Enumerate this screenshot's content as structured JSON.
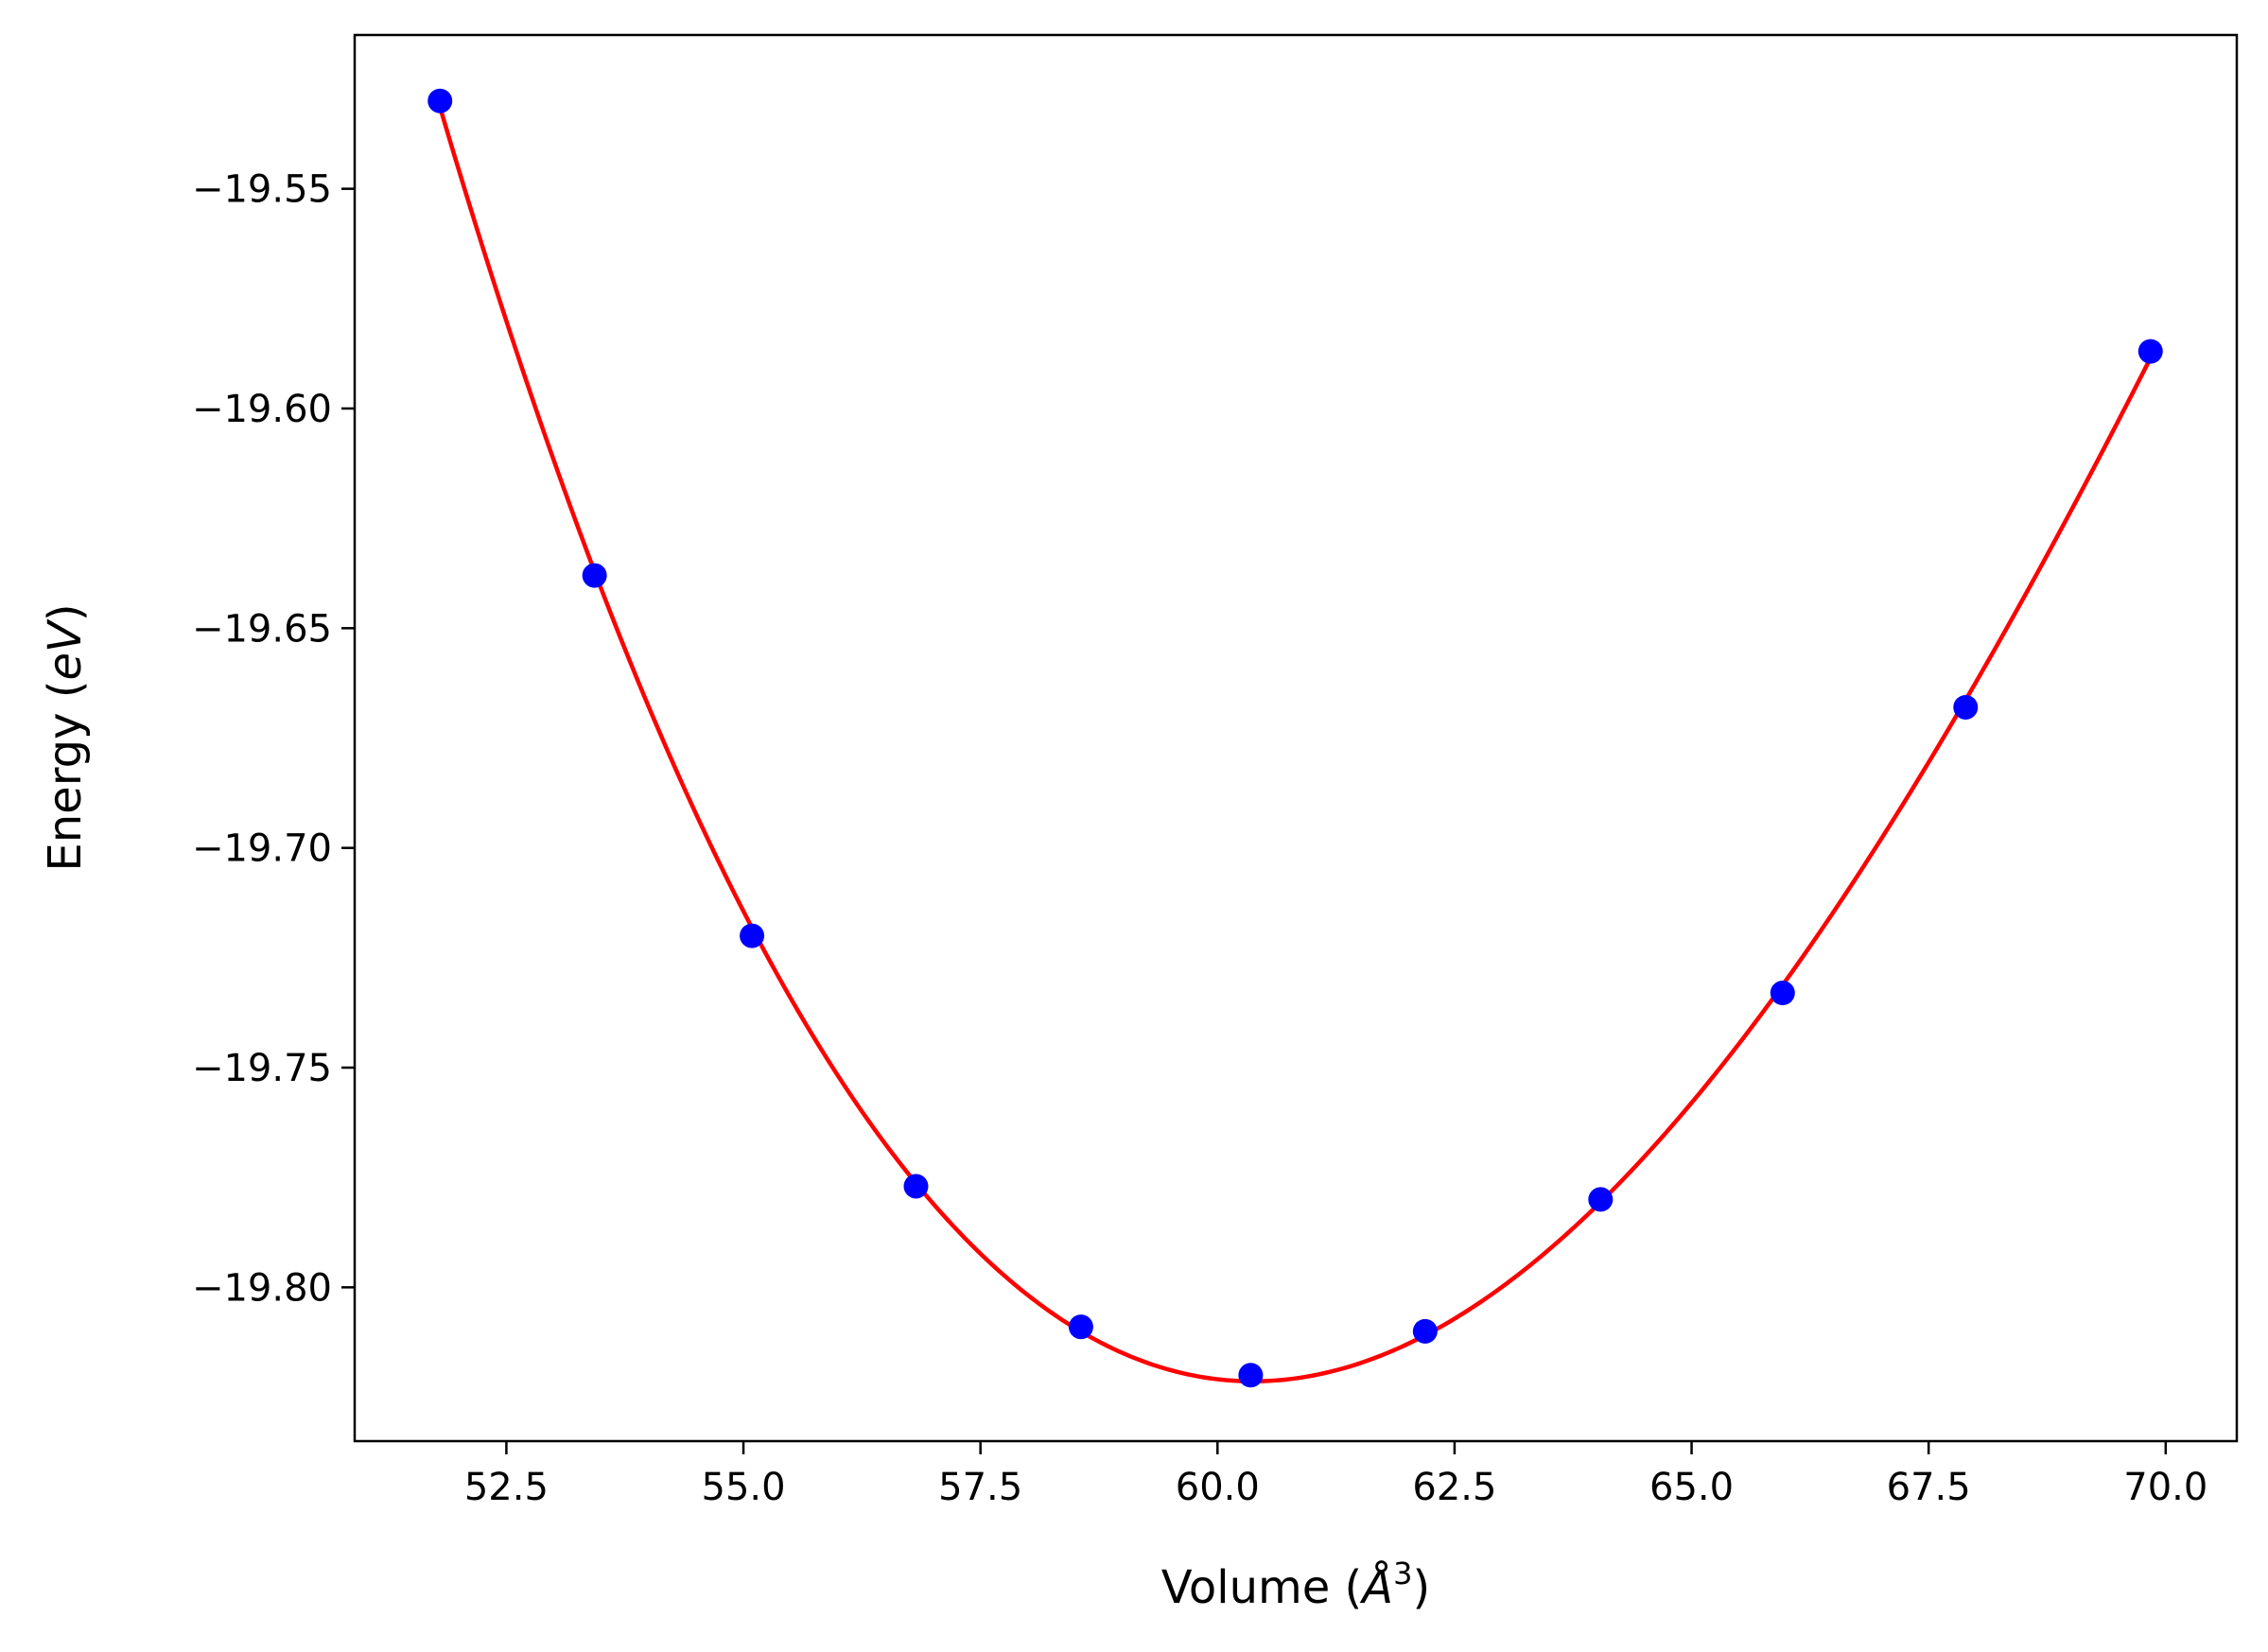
{
  "chart_data": {
    "type": "line",
    "title": "",
    "xlabel": {
      "pre": "Volume (",
      "sym": "Å",
      "sup": "3",
      "post": ")"
    },
    "ylabel": {
      "pre": "Energy (",
      "unit": "eV",
      "post": ")"
    },
    "xlim": [
      50.9,
      70.75
    ],
    "ylim": [
      -19.835,
      -19.515
    ],
    "xticks": [
      52.5,
      55.0,
      57.5,
      60.0,
      62.5,
      65.0,
      67.5,
      70.0
    ],
    "xtick_labels": [
      "52.5",
      "55.0",
      "57.5",
      "60.0",
      "62.5",
      "65.0",
      "67.5",
      "70.0"
    ],
    "yticks": [
      -19.55,
      -19.6,
      -19.65,
      -19.7,
      -19.75,
      -19.8
    ],
    "ytick_labels": [
      "−19.55",
      "−19.60",
      "−19.65",
      "−19.70",
      "−19.75",
      "−19.80"
    ],
    "grid": false,
    "series": [
      {
        "kind": "points",
        "color": "#0000ff",
        "x": [
          51.8,
          53.43,
          55.09,
          56.82,
          58.56,
          60.35,
          62.19,
          64.04,
          65.96,
          67.89,
          69.84
        ],
        "y": [
          -19.53,
          -19.638,
          -19.72,
          -19.777,
          -19.809,
          -19.82,
          -19.81,
          -19.78,
          -19.733,
          -19.668,
          -19.587
        ]
      },
      {
        "kind": "fit-curve",
        "color": "#ff0000"
      }
    ]
  }
}
